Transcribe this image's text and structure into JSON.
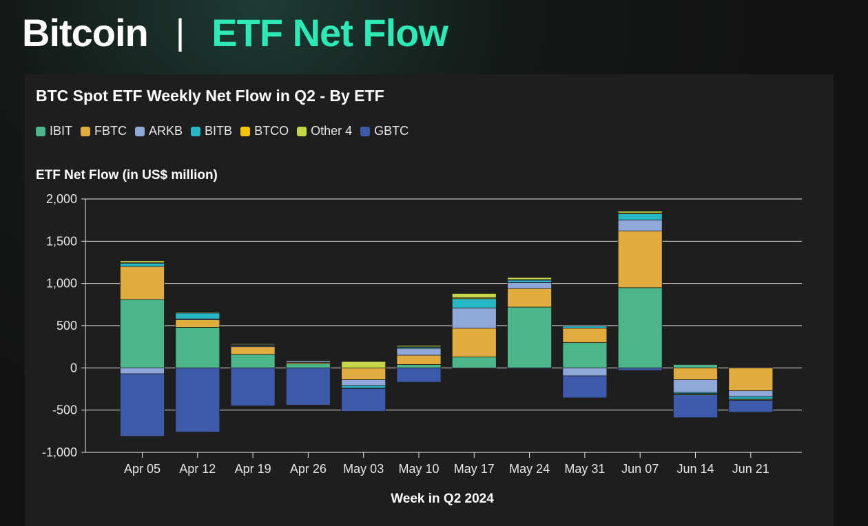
{
  "header": {
    "brand": "Bitcoin",
    "separator": "|",
    "topic": "ETF Net Flow"
  },
  "chart_data": {
    "type": "bar",
    "stacked": true,
    "title": "BTC Spot ETF Weekly Net Flow in Q2 - By ETF",
    "ylabel": "ETF Net Flow (in US$ million)",
    "xlabel": "Week in Q2 2024",
    "ylim": [
      -1000,
      2000
    ],
    "yticks": [
      2000,
      1500,
      1000,
      500,
      0,
      -500,
      -1000
    ],
    "ytick_labels": [
      "2,000",
      "1,500",
      "1,000",
      "500",
      "0",
      "-500",
      "-1,000"
    ],
    "grid": true,
    "legend": "top-left",
    "categories": [
      "Apr 05",
      "Apr 12",
      "Apr 19",
      "Apr 26",
      "May 03",
      "May 10",
      "May 17",
      "May 24",
      "May 31",
      "Jun 07",
      "Jun 14",
      "Jun 21"
    ],
    "series": [
      {
        "name": "IBIT",
        "color": "#4cb58a",
        "values": [
          810,
          480,
          160,
          50,
          0,
          40,
          130,
          720,
          300,
          950,
          40,
          0
        ]
      },
      {
        "name": "FBTC",
        "color": "#e0ac3f",
        "values": [
          390,
          90,
          90,
          15,
          -140,
          110,
          340,
          220,
          170,
          670,
          -140,
          -270
        ]
      },
      {
        "name": "ARKB",
        "color": "#8fa8d9",
        "values": [
          -70,
          10,
          10,
          20,
          -70,
          80,
          240,
          70,
          -95,
          130,
          -150,
          -70
        ]
      },
      {
        "name": "BITB",
        "color": "#27b7c4",
        "values": [
          40,
          70,
          10,
          5,
          -30,
          15,
          110,
          30,
          25,
          75,
          -15,
          -30
        ]
      },
      {
        "name": "BTCO",
        "color": "#f7c300",
        "values": [
          10,
          5,
          5,
          0,
          -5,
          5,
          10,
          5,
          0,
          10,
          -5,
          -5
        ]
      },
      {
        "name": "Other 4",
        "color": "#c6d647",
        "values": [
          20,
          10,
          10,
          5,
          75,
          15,
          50,
          25,
          0,
          20,
          -10,
          -10
        ]
      },
      {
        "name": "GBTC",
        "color": "#3d5aab",
        "values": [
          -740,
          -760,
          -450,
          -440,
          -270,
          -170,
          0,
          -10,
          -260,
          -30,
          -270,
          -140
        ]
      }
    ]
  }
}
